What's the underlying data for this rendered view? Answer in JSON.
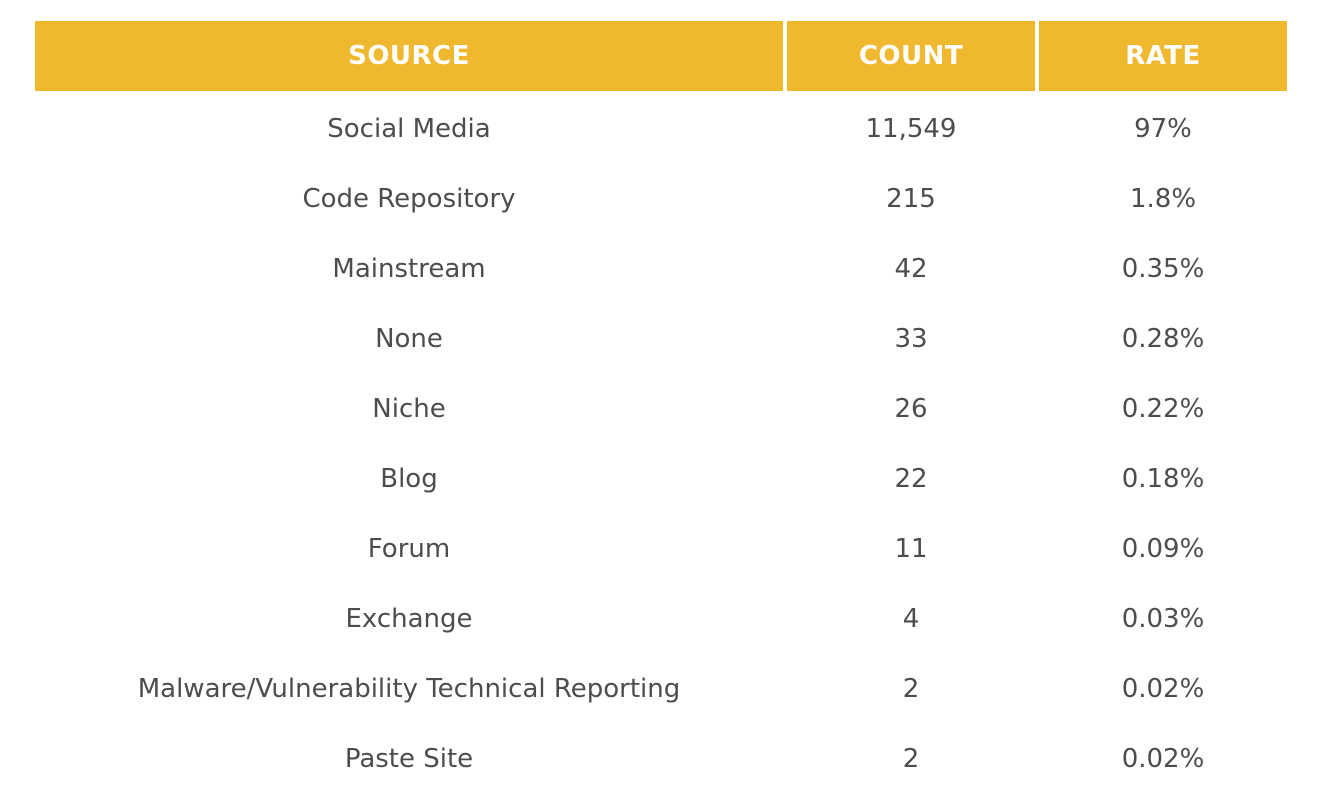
{
  "table": {
    "headers": {
      "source": "SOURCE",
      "count": "COUNT",
      "rate": "RATE"
    },
    "rows": [
      {
        "source": "Social Media",
        "count": "11,549",
        "rate": "97%"
      },
      {
        "source": "Code Repository",
        "count": "215",
        "rate": "1.8%"
      },
      {
        "source": "Mainstream",
        "count": "42",
        "rate": "0.35%"
      },
      {
        "source": "None",
        "count": "33",
        "rate": "0.28%"
      },
      {
        "source": "Niche",
        "count": "26",
        "rate": "0.22%"
      },
      {
        "source": "Blog",
        "count": "22",
        "rate": "0.18%"
      },
      {
        "source": "Forum",
        "count": "11",
        "rate": "0.09%"
      },
      {
        "source": "Exchange",
        "count": "4",
        "rate": "0.03%"
      },
      {
        "source": "Malware/Vulnerability Technical Reporting",
        "count": "2",
        "rate": "0.02%"
      },
      {
        "source": "Paste Site",
        "count": "2",
        "rate": "0.02%"
      }
    ]
  },
  "colors": {
    "header_background": "#f0b82e",
    "header_text": "#ffffff",
    "body_text": "#4d4d4d"
  }
}
